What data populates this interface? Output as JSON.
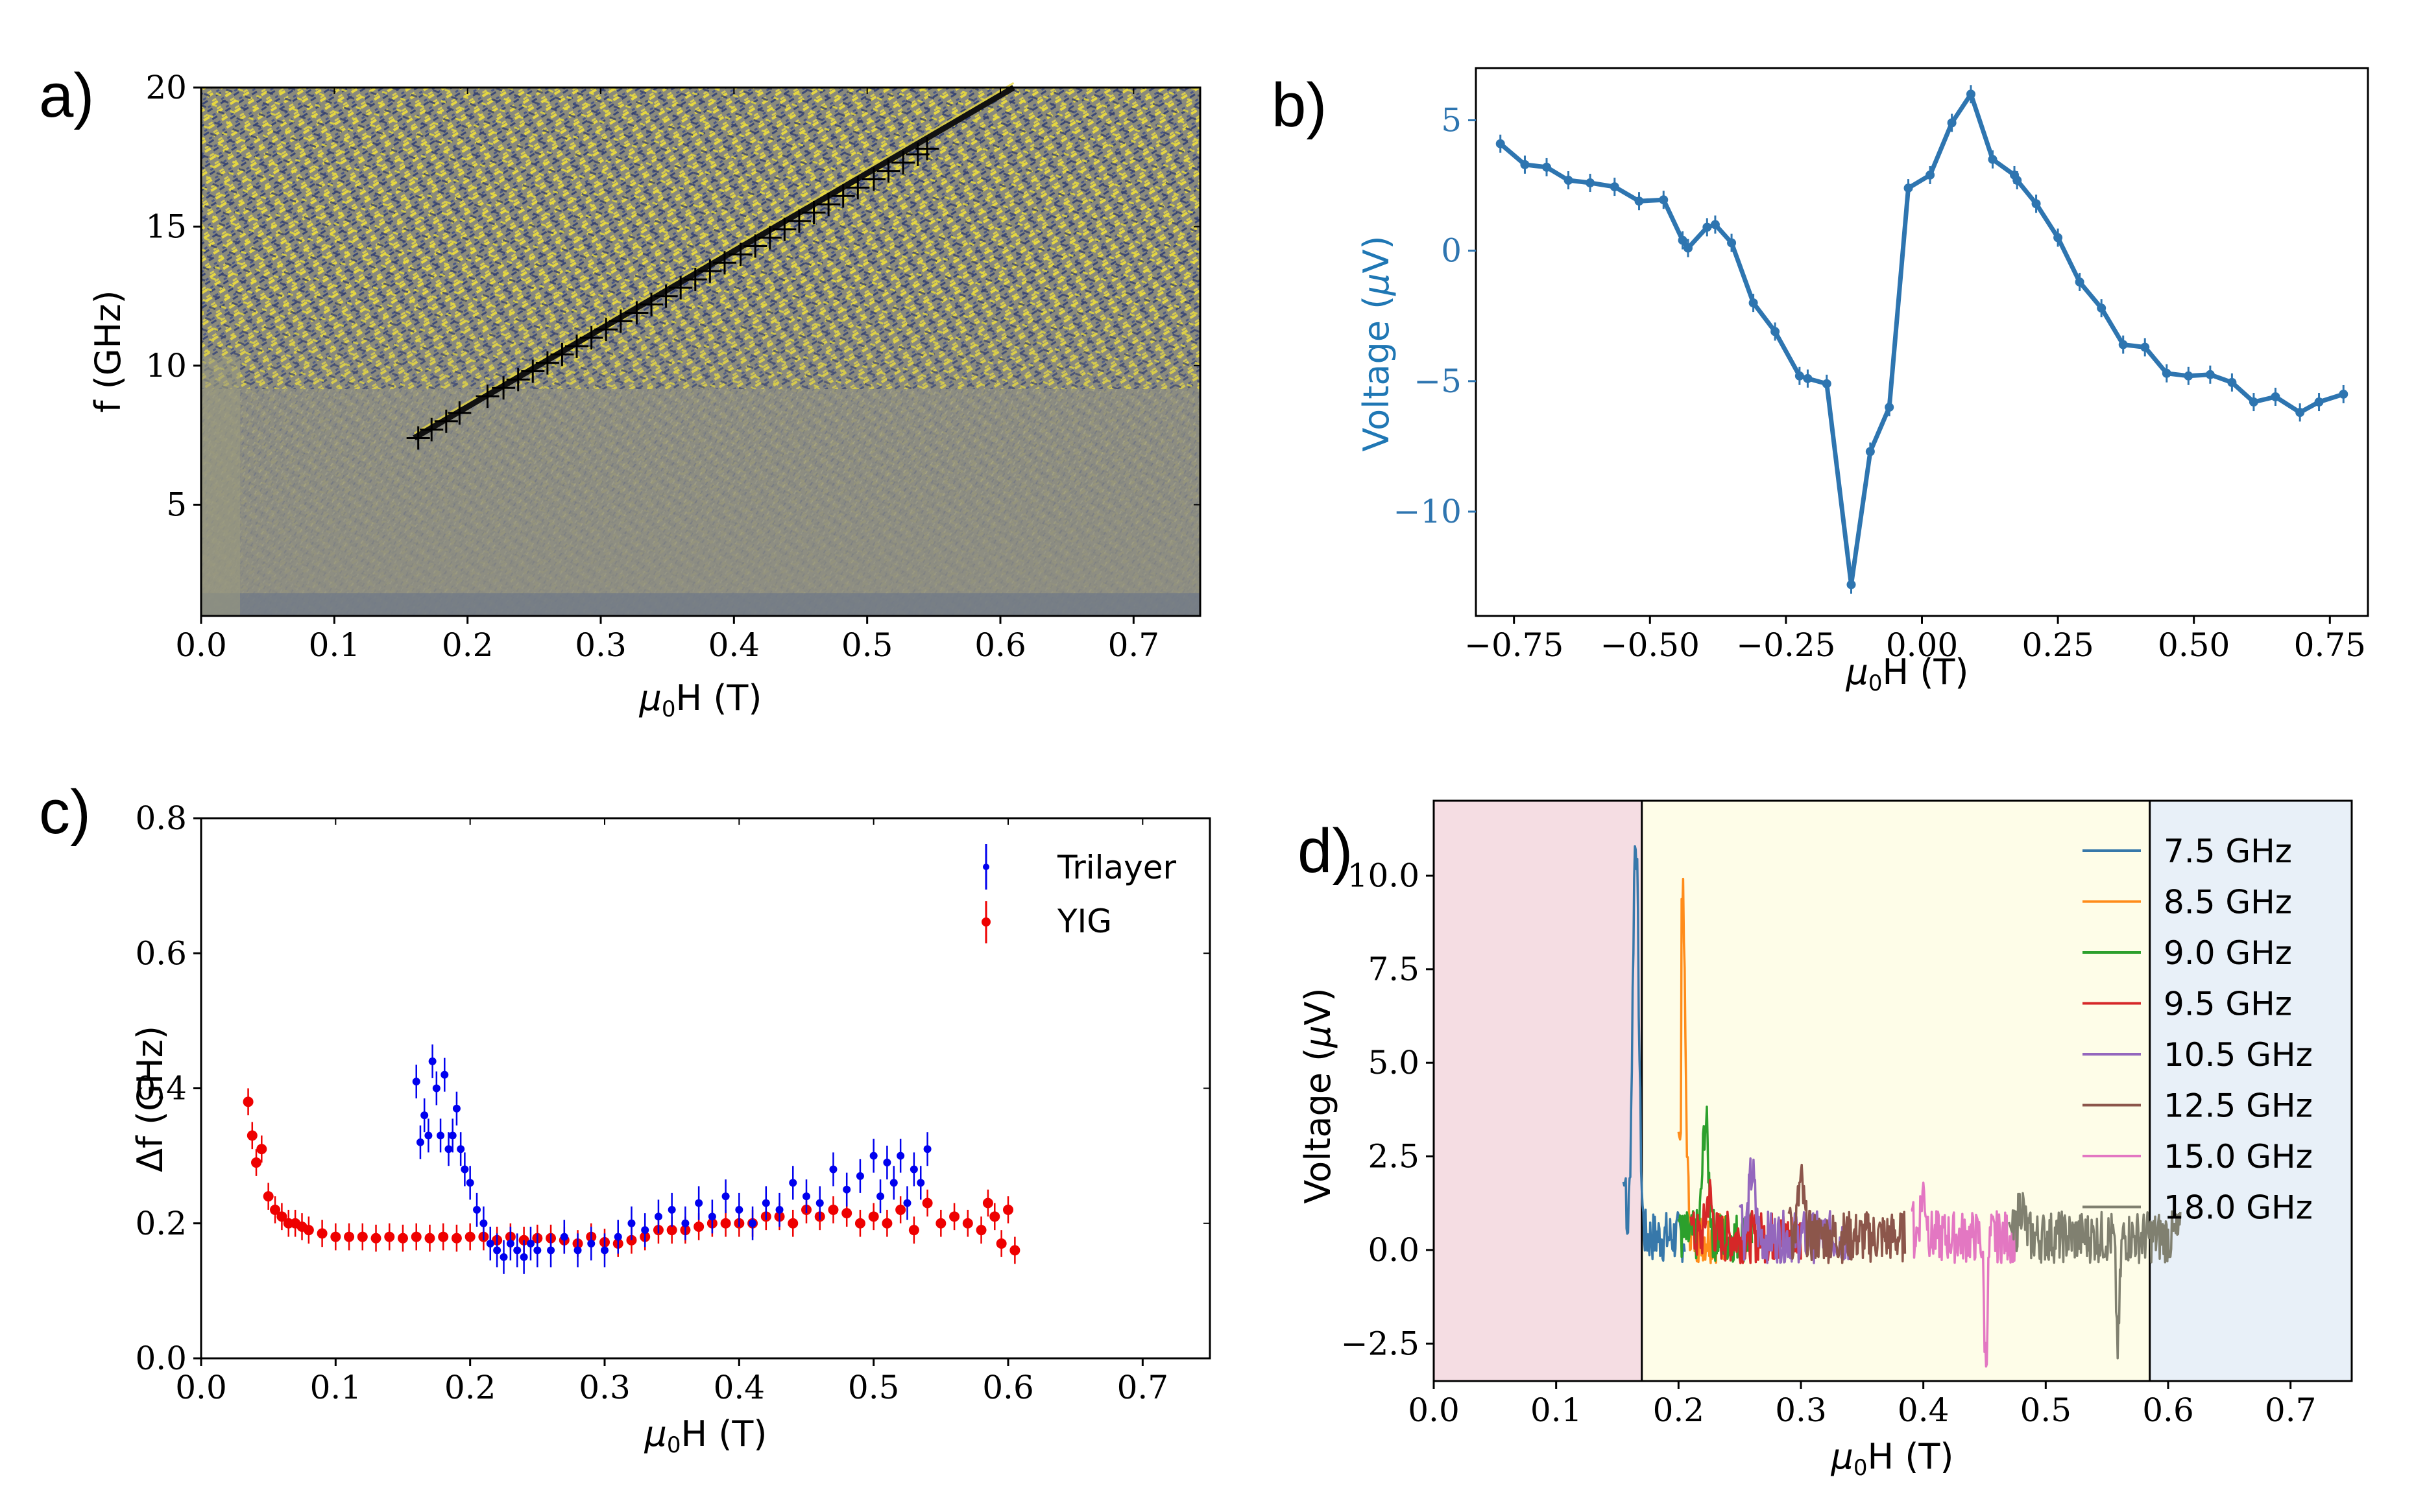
{
  "panel_labels": {
    "a": "a)",
    "b": "b)",
    "c": "c)",
    "d": "d)"
  },
  "chart_data": [
    {
      "id": "a",
      "type": "heatmap",
      "xlabel_main": "μ",
      "xlabel_sub": "0",
      "xlabel_rest": "H (T)",
      "ylabel": "f (GHz)",
      "xlim": [
        0,
        0.75
      ],
      "ylim": [
        1,
        20
      ],
      "xticks": [
        0.0,
        0.1,
        0.2,
        0.3,
        0.4,
        0.5,
        0.6,
        0.7
      ],
      "xtick_labels": [
        "0.0",
        "0.1",
        "0.2",
        "0.3",
        "0.4",
        "0.5",
        "0.6",
        "0.7"
      ],
      "yticks": [
        5,
        10,
        15,
        20
      ],
      "ytick_labels": [
        "5",
        "10",
        "15",
        "20"
      ],
      "colors": {
        "low": "#3b4a7a",
        "mid": "#8c8c7a",
        "high": "#e8d840"
      },
      "resonance_line": {
        "x": [
          0.16,
          0.61
        ],
        "y": [
          7.4,
          20.0
        ]
      },
      "markers": {
        "x": [
          0.163,
          0.173,
          0.184,
          0.194,
          0.215,
          0.227,
          0.238,
          0.249,
          0.26,
          0.271,
          0.282,
          0.293,
          0.304,
          0.315,
          0.327,
          0.338,
          0.349,
          0.36,
          0.371,
          0.382,
          0.393,
          0.405,
          0.416,
          0.427,
          0.438,
          0.449,
          0.46,
          0.471,
          0.482,
          0.493,
          0.505,
          0.516,
          0.527,
          0.538,
          0.545
        ],
        "y": [
          7.4,
          7.7,
          8.0,
          8.3,
          8.9,
          9.2,
          9.5,
          9.8,
          10.1,
          10.4,
          10.7,
          11.0,
          11.3,
          11.6,
          11.9,
          12.2,
          12.5,
          12.8,
          13.1,
          13.4,
          13.7,
          14.0,
          14.3,
          14.6,
          14.9,
          15.2,
          15.5,
          15.8,
          16.1,
          16.4,
          16.7,
          17.0,
          17.3,
          17.6,
          17.8
        ]
      }
    },
    {
      "id": "b",
      "type": "line",
      "xlabel_main": "μ",
      "xlabel_sub": "0",
      "xlabel_rest": "H (T)",
      "ylabel_main": "Voltage (",
      "ylabel_mu": "μ",
      "ylabel_rest": "V)",
      "xlim": [
        -0.82,
        0.82
      ],
      "ylim": [
        -14,
        7
      ],
      "xticks": [
        -0.75,
        -0.5,
        -0.25,
        0.0,
        0.25,
        0.5,
        0.75
      ],
      "xtick_labels": [
        "−0.75",
        "−0.50",
        "−0.25",
        "0.00",
        "0.25",
        "0.50",
        "0.75"
      ],
      "yticks": [
        5,
        0,
        -5,
        -10
      ],
      "ytick_labels": [
        "5",
        "0",
        "−5",
        "−10"
      ],
      "color": "#2e75b0",
      "x": [
        -0.775,
        -0.73,
        -0.69,
        -0.65,
        -0.61,
        -0.565,
        -0.52,
        -0.475,
        -0.44,
        -0.43,
        -0.395,
        -0.38,
        -0.35,
        -0.31,
        -0.27,
        -0.225,
        -0.21,
        -0.175,
        -0.13,
        -0.095,
        -0.06,
        -0.025,
        0.015,
        0.055,
        0.09,
        0.13,
        0.17,
        0.175,
        0.21,
        0.25,
        0.29,
        0.33,
        0.37,
        0.41,
        0.45,
        0.49,
        0.53,
        0.57,
        0.61,
        0.65,
        0.695,
        0.73,
        0.775
      ],
      "y": [
        4.1,
        3.3,
        3.2,
        2.7,
        2.6,
        2.45,
        1.9,
        1.95,
        0.4,
        0.1,
        0.9,
        1.0,
        0.3,
        -2.0,
        -3.1,
        -4.8,
        -4.9,
        -5.1,
        -12.8,
        -7.7,
        -6.0,
        2.4,
        2.9,
        4.9,
        6.0,
        3.5,
        2.9,
        2.7,
        1.8,
        0.5,
        -1.2,
        -2.2,
        -3.6,
        -3.7,
        -4.7,
        -4.8,
        -4.75,
        -5.05,
        -5.8,
        -5.6,
        -6.2,
        -5.8,
        -5.5
      ]
    },
    {
      "id": "c",
      "type": "scatter",
      "xlabel_main": "μ",
      "xlabel_sub": "0",
      "xlabel_rest": "H (T)",
      "ylabel": "Δf (GHz)",
      "xlim": [
        0,
        0.75
      ],
      "ylim": [
        0,
        0.8
      ],
      "xticks": [
        0.0,
        0.1,
        0.2,
        0.3,
        0.4,
        0.5,
        0.6,
        0.7
      ],
      "xtick_labels": [
        "0.0",
        "0.1",
        "0.2",
        "0.3",
        "0.4",
        "0.5",
        "0.6",
        "0.7"
      ],
      "yticks": [
        0.0,
        0.2,
        0.4,
        0.6,
        0.8
      ],
      "ytick_labels": [
        "0.0",
        "0.2",
        "0.4",
        "0.6",
        "0.8"
      ],
      "legend": [
        {
          "name": "Trilayer",
          "color": "#0000ee"
        },
        {
          "name": "YIG",
          "color": "#ee0000"
        }
      ],
      "series": [
        {
          "name": "Trilayer",
          "color": "#0000ee",
          "x": [
            0.16,
            0.163,
            0.166,
            0.169,
            0.172,
            0.175,
            0.178,
            0.181,
            0.184,
            0.187,
            0.19,
            0.193,
            0.196,
            0.2,
            0.205,
            0.21,
            0.215,
            0.22,
            0.225,
            0.23,
            0.235,
            0.24,
            0.245,
            0.25,
            0.26,
            0.27,
            0.28,
            0.29,
            0.3,
            0.31,
            0.32,
            0.33,
            0.34,
            0.35,
            0.36,
            0.37,
            0.38,
            0.39,
            0.4,
            0.41,
            0.42,
            0.43,
            0.44,
            0.45,
            0.46,
            0.47,
            0.48,
            0.49,
            0.5,
            0.505,
            0.51,
            0.515,
            0.52,
            0.525,
            0.53,
            0.535,
            0.54
          ],
          "y": [
            0.41,
            0.32,
            0.36,
            0.33,
            0.44,
            0.4,
            0.33,
            0.42,
            0.31,
            0.33,
            0.37,
            0.31,
            0.28,
            0.26,
            0.22,
            0.2,
            0.17,
            0.16,
            0.15,
            0.17,
            0.16,
            0.15,
            0.17,
            0.16,
            0.16,
            0.18,
            0.16,
            0.17,
            0.16,
            0.18,
            0.2,
            0.19,
            0.21,
            0.22,
            0.2,
            0.23,
            0.21,
            0.24,
            0.22,
            0.2,
            0.23,
            0.22,
            0.26,
            0.24,
            0.23,
            0.28,
            0.25,
            0.27,
            0.3,
            0.24,
            0.29,
            0.26,
            0.3,
            0.23,
            0.28,
            0.26,
            0.31
          ],
          "err": 0.025
        },
        {
          "name": "YIG",
          "color": "#ee0000",
          "x": [
            0.035,
            0.038,
            0.041,
            0.045,
            0.05,
            0.055,
            0.06,
            0.065,
            0.07,
            0.075,
            0.08,
            0.09,
            0.1,
            0.11,
            0.12,
            0.13,
            0.14,
            0.15,
            0.16,
            0.17,
            0.18,
            0.19,
            0.2,
            0.21,
            0.22,
            0.23,
            0.24,
            0.25,
            0.26,
            0.27,
            0.28,
            0.29,
            0.3,
            0.31,
            0.32,
            0.33,
            0.34,
            0.35,
            0.36,
            0.37,
            0.38,
            0.39,
            0.4,
            0.41,
            0.42,
            0.43,
            0.44,
            0.45,
            0.46,
            0.47,
            0.48,
            0.49,
            0.5,
            0.51,
            0.52,
            0.53,
            0.54,
            0.55,
            0.56,
            0.57,
            0.58,
            0.585,
            0.59,
            0.595,
            0.6,
            0.605
          ],
          "y": [
            0.38,
            0.33,
            0.29,
            0.31,
            0.24,
            0.22,
            0.21,
            0.2,
            0.2,
            0.195,
            0.19,
            0.185,
            0.18,
            0.18,
            0.18,
            0.178,
            0.18,
            0.178,
            0.18,
            0.178,
            0.18,
            0.178,
            0.18,
            0.18,
            0.175,
            0.18,
            0.175,
            0.178,
            0.178,
            0.175,
            0.17,
            0.18,
            0.172,
            0.17,
            0.175,
            0.18,
            0.19,
            0.19,
            0.19,
            0.195,
            0.2,
            0.2,
            0.2,
            0.2,
            0.21,
            0.21,
            0.2,
            0.22,
            0.21,
            0.22,
            0.215,
            0.2,
            0.21,
            0.2,
            0.22,
            0.19,
            0.23,
            0.2,
            0.21,
            0.2,
            0.19,
            0.23,
            0.21,
            0.17,
            0.22,
            0.16
          ],
          "err": 0.02
        }
      ]
    },
    {
      "id": "d",
      "type": "line",
      "xlabel_main": "μ",
      "xlabel_sub": "0",
      "xlabel_rest": "H (T)",
      "ylabel_main": "Voltage (",
      "ylabel_mu": "μ",
      "ylabel_rest": "V)",
      "xlim": [
        0,
        0.75
      ],
      "ylim": [
        -3.5,
        12
      ],
      "xticks": [
        0.0,
        0.1,
        0.2,
        0.3,
        0.4,
        0.5,
        0.6,
        0.7
      ],
      "xtick_labels": [
        "0.0",
        "0.1",
        "0.2",
        "0.3",
        "0.4",
        "0.5",
        "0.6",
        "0.7"
      ],
      "yticks": [
        10.0,
        7.5,
        5.0,
        2.5,
        0.0,
        -2.5
      ],
      "ytick_labels": [
        "10.0",
        "7.5",
        "5.0",
        "2.5",
        "0.0",
        "−2.5"
      ],
      "regions": [
        {
          "x": [
            0,
            0.17
          ],
          "color": "#f5dde3"
        },
        {
          "x": [
            0.17,
            0.585
          ],
          "color": "#fefde8"
        },
        {
          "x": [
            0.585,
            0.75
          ],
          "color": "#e8f0f8"
        }
      ],
      "vlines": [
        0.17,
        0.585
      ],
      "series": [
        {
          "name": "7.5 GHz",
          "color": "#3778aa",
          "range": [
            0.155,
            0.205
          ],
          "peak": {
            "x": 0.165,
            "y": 11.3
          },
          "dip": null,
          "start": 1.8
        },
        {
          "name": "8.5 GHz",
          "color": "#ff8c1a",
          "range": [
            0.2,
            0.24
          ],
          "peak": {
            "x": 0.203,
            "y": 9.8
          },
          "dip": null,
          "start": 3.1
        },
        {
          "name": "9.0 GHz",
          "color": "#2ca02c",
          "range": [
            0.2,
            0.26
          ],
          "peak": {
            "x": 0.222,
            "y": 3.6
          },
          "dip": null,
          "start": 0.8
        },
        {
          "name": "9.5 GHz",
          "color": "#d62728",
          "range": [
            0.21,
            0.3
          ],
          "peak": {
            "x": 0.225,
            "y": 1.6
          },
          "dip": null,
          "start": 0.8
        },
        {
          "name": "10.5 GHz",
          "color": "#9467bd",
          "range": [
            0.25,
            0.34
          ],
          "peak": {
            "x": 0.26,
            "y": 2.2
          },
          "dip": null,
          "start": 1.2
        },
        {
          "name": "12.5 GHz",
          "color": "#8c564b",
          "range": [
            0.29,
            0.385
          ],
          "peak": {
            "x": 0.3,
            "y": 1.9
          },
          "dip": null,
          "start": 1.0
        },
        {
          "name": "15.0 GHz",
          "color": "#e377c2",
          "range": [
            0.39,
            0.475
          ],
          "peak": {
            "x": 0.4,
            "y": 1.7
          },
          "dip": {
            "x": 0.451,
            "y": -3.0
          },
          "start": 1.2
        },
        {
          "name": "18.0 GHz",
          "color": "#808070",
          "range": [
            0.47,
            0.61
          ],
          "peak": {
            "x": 0.48,
            "y": 1.4
          },
          "dip": {
            "x": 0.559,
            "y": -2.6
          },
          "start": 0.6
        }
      ]
    }
  ]
}
